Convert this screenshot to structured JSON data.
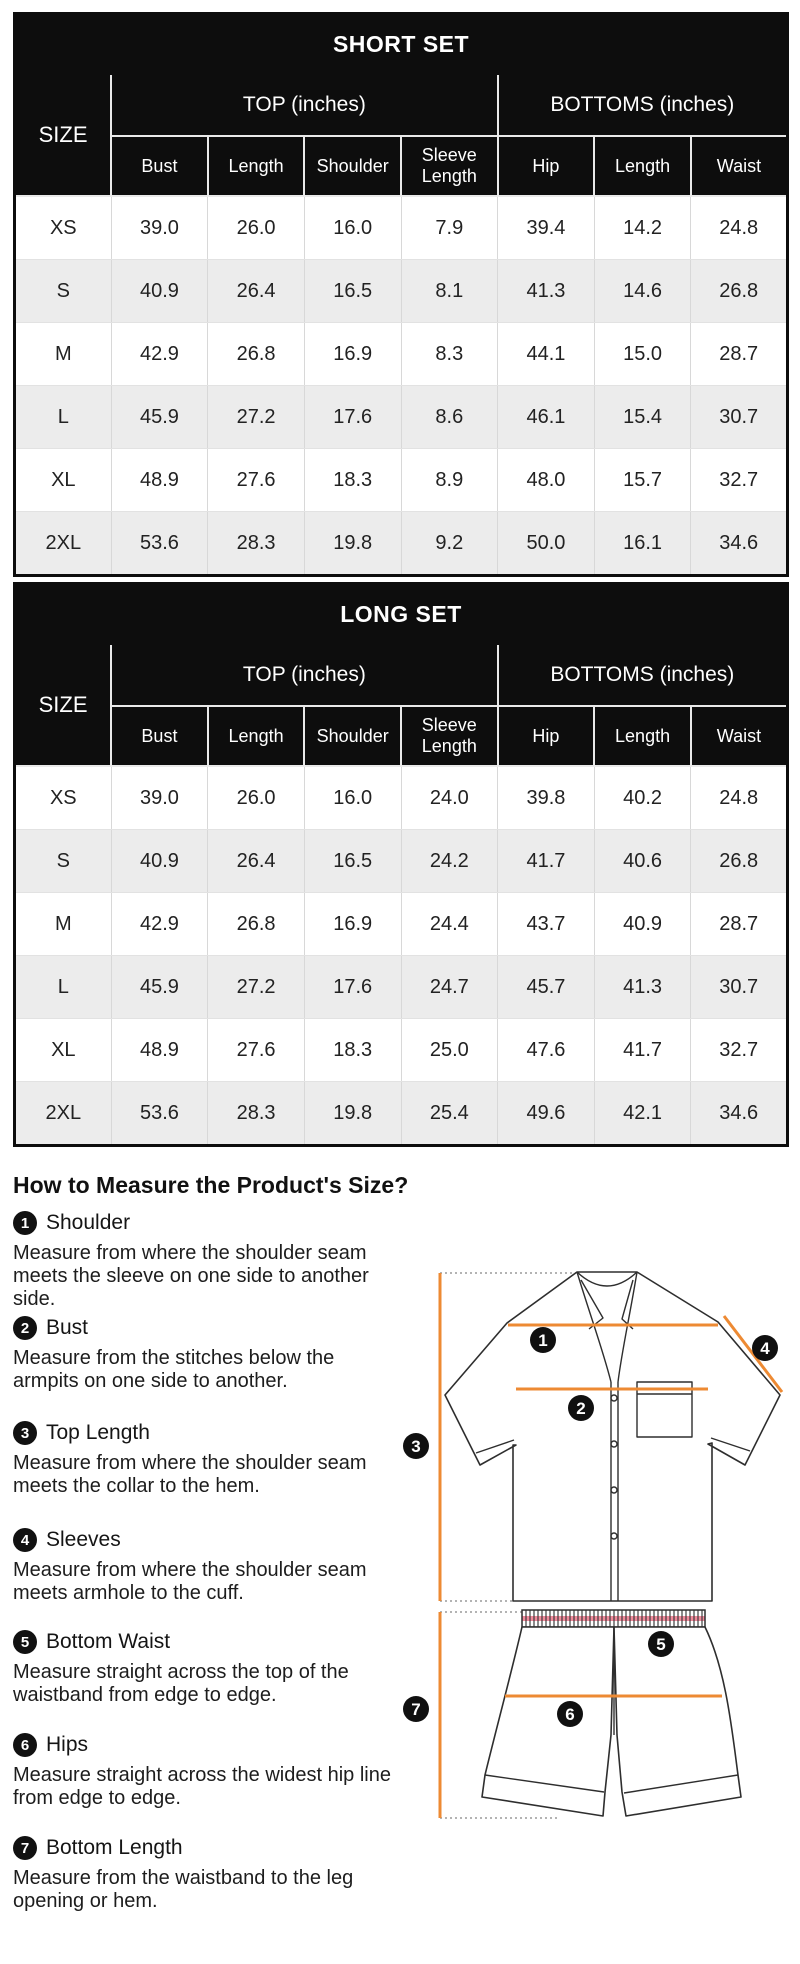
{
  "tables": [
    {
      "title": "SHORT SET",
      "size_header": "SIZE",
      "groups": [
        {
          "label": "TOP (inches)"
        },
        {
          "label": "BOTTOMS (inches)"
        }
      ],
      "columns": [
        "Bust",
        "Length",
        "Shoulder",
        "Sleeve Length",
        "Hip",
        "Length",
        "Waist"
      ],
      "rows": [
        {
          "size": "XS",
          "values": [
            "39.0",
            "26.0",
            "16.0",
            "7.9",
            "39.4",
            "14.2",
            "24.8"
          ]
        },
        {
          "size": "S",
          "values": [
            "40.9",
            "26.4",
            "16.5",
            "8.1",
            "41.3",
            "14.6",
            "26.8"
          ]
        },
        {
          "size": "M",
          "values": [
            "42.9",
            "26.8",
            "16.9",
            "8.3",
            "44.1",
            "15.0",
            "28.7"
          ]
        },
        {
          "size": "L",
          "values": [
            "45.9",
            "27.2",
            "17.6",
            "8.6",
            "46.1",
            "15.4",
            "30.7"
          ]
        },
        {
          "size": "XL",
          "values": [
            "48.9",
            "27.6",
            "18.3",
            "8.9",
            "48.0",
            "15.7",
            "32.7"
          ]
        },
        {
          "size": "2XL",
          "values": [
            "53.6",
            "28.3",
            "19.8",
            "9.2",
            "50.0",
            "16.1",
            "34.6"
          ]
        }
      ]
    },
    {
      "title": "LONG SET",
      "size_header": "SIZE",
      "groups": [
        {
          "label": "TOP (inches)"
        },
        {
          "label": "BOTTOMS (inches)"
        }
      ],
      "columns": [
        "Bust",
        "Length",
        "Shoulder",
        "Sleeve Length",
        "Hip",
        "Length",
        "Waist"
      ],
      "rows": [
        {
          "size": "XS",
          "values": [
            "39.0",
            "26.0",
            "16.0",
            "24.0",
            "39.8",
            "40.2",
            "24.8"
          ]
        },
        {
          "size": "S",
          "values": [
            "40.9",
            "26.4",
            "16.5",
            "24.2",
            "41.7",
            "40.6",
            "26.8"
          ]
        },
        {
          "size": "M",
          "values": [
            "42.9",
            "26.8",
            "16.9",
            "24.4",
            "43.7",
            "40.9",
            "28.7"
          ]
        },
        {
          "size": "L",
          "values": [
            "45.9",
            "27.2",
            "17.6",
            "24.7",
            "45.7",
            "41.3",
            "30.7"
          ]
        },
        {
          "size": "XL",
          "values": [
            "48.9",
            "27.6",
            "18.3",
            "25.0",
            "47.6",
            "41.7",
            "32.7"
          ]
        },
        {
          "size": "2XL",
          "values": [
            "53.6",
            "28.3",
            "19.8",
            "25.4",
            "49.6",
            "42.1",
            "34.6"
          ]
        }
      ]
    }
  ],
  "measure": {
    "heading": "How to Measure the Product's Size?",
    "items": [
      {
        "number": "1",
        "label": "Shoulder",
        "text": "Measure from where the shoulder seam meets the sleeve on one side to another side."
      },
      {
        "number": "2",
        "label": "Bust",
        "text": "Measure from the stitches below the armpits on one side to another."
      },
      {
        "number": "3",
        "label": "Top Length",
        "text": "Measure from where the shoulder seam meets the collar to the hem."
      },
      {
        "number": "4",
        "label": "Sleeves",
        "text": "Measure from where the shoulder seam meets armhole to the cuff."
      },
      {
        "number": "5",
        "label": "Bottom Waist",
        "text": "Measure straight across the top of the waistband from edge to edge."
      },
      {
        "number": "6",
        "label": "Hips",
        "text": "Measure straight across the widest hip line from edge to edge."
      },
      {
        "number": "7",
        "label": "Bottom Length",
        "text": "Measure from the waistband to the leg opening or hem."
      }
    ]
  },
  "diagram": {
    "badges": [
      "1",
      "2",
      "3",
      "4",
      "5",
      "6",
      "7"
    ]
  },
  "colors": {
    "header_bg": "#0D0D0D",
    "row_alt": "#ECECEC",
    "accent_orange": "#ED8A33",
    "waistband_pink": "#F08A9B"
  }
}
